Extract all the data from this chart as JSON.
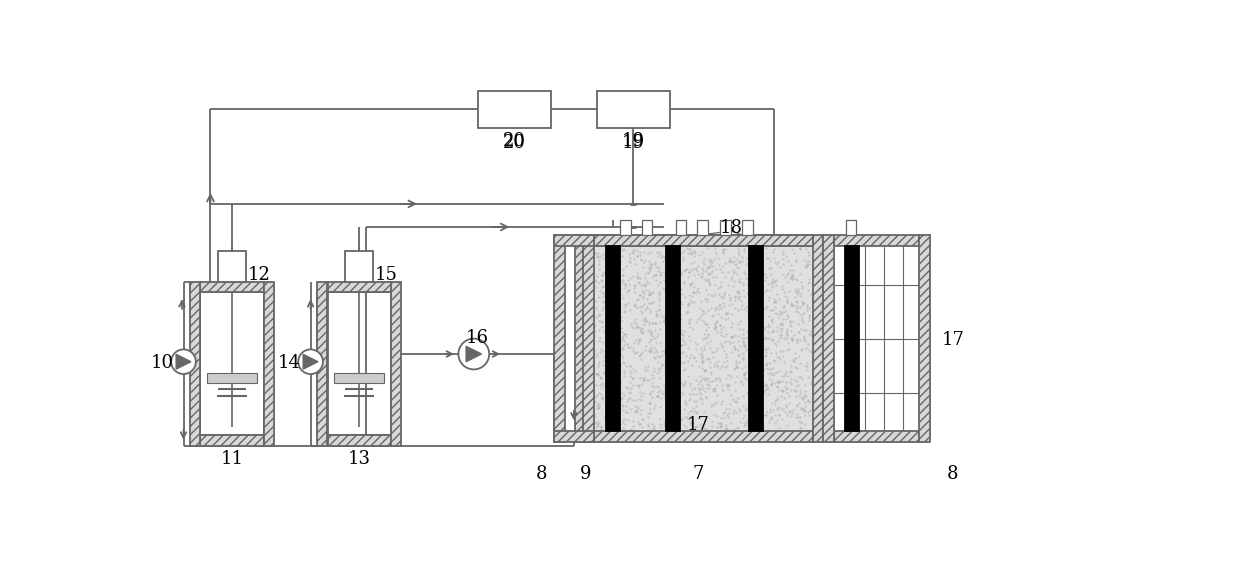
{
  "bg_color": "#ffffff",
  "lc": "#666666",
  "black": "#000000",
  "gray_fill": "#d8d8d8",
  "soil_fill": "#e0e0e0",
  "white": "#ffffff",
  "figw": 12.4,
  "figh": 5.76,
  "lw": 1.3
}
